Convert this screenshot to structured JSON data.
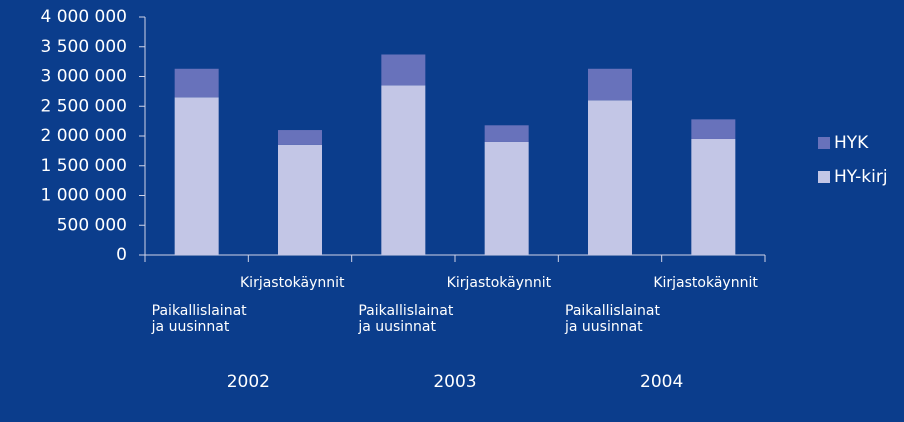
{
  "chart_data": {
    "type": "stacked_bar",
    "categories": [
      "Paikallislainat\nja uusinnat",
      "Kirjastokäynnit",
      "Paikallislainat\nja uusinnat",
      "Kirjastokäynnit",
      "Paikallislainat\nja uusinnat",
      "Kirjastokäynnit"
    ],
    "groups": [
      "2002",
      "2003",
      "2004"
    ],
    "series": [
      {
        "name": "HY-kirj",
        "color": "#c3c6e6",
        "values": [
          2650000,
          1850000,
          2850000,
          1900000,
          2600000,
          1950000
        ]
      },
      {
        "name": "HYK",
        "color": "#6872bb",
        "values": [
          480000,
          250000,
          520000,
          280000,
          530000,
          330000
        ]
      }
    ],
    "ylim": [
      0,
      4000000
    ],
    "yticks": [
      0,
      {
        "value": 500000,
        "label": "500 000"
      },
      {
        "value": 1000000,
        "label": "1 000 000"
      },
      {
        "value": 1500000,
        "label": "1 500 000"
      },
      {
        "value": 2000000,
        "label": "2 000 000"
      },
      {
        "value": 2500000,
        "label": "2 500 000"
      },
      {
        "value": 3000000,
        "label": "3 000 000"
      },
      {
        "value": 3500000,
        "label": "3 500 000"
      },
      {
        "value": 4000000,
        "label": "4 000 000"
      }
    ],
    "grid": false,
    "legend": "right"
  }
}
